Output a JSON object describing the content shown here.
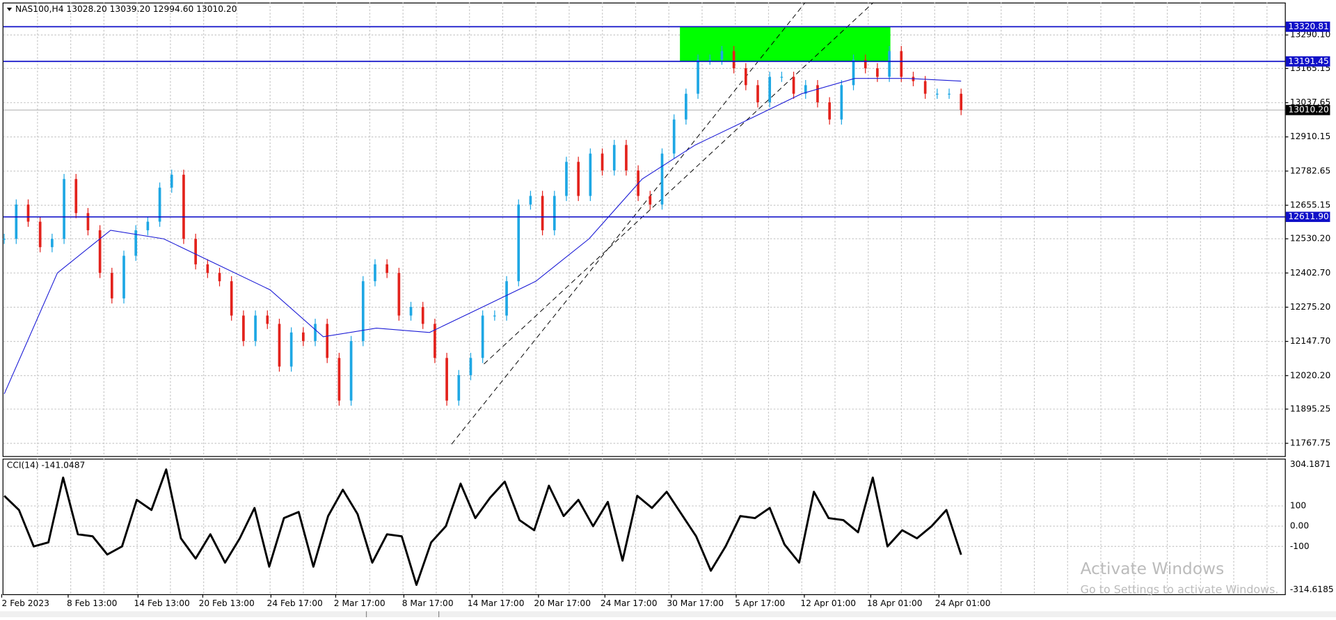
{
  "header": "NAS100,H4  13028.20 13039.20 12994.60 13010.20",
  "price": {
    "type": "candlestick",
    "ylim": [
      11720.1,
      13410.9
    ],
    "yticks": [
      {
        "value": 13290.1,
        "label": "13290.10"
      },
      13165.15,
      13037.65,
      12910.15,
      12782.65,
      12655.15,
      {
        "value": 12530.2,
        "label": "12530.20"
      },
      {
        "value": 12402.7,
        "label": "12402.70"
      },
      {
        "value": 12275.2,
        "label": "12275.20"
      },
      {
        "value": 12147.7,
        "label": "12147.70"
      },
      {
        "value": 12020.2,
        "label": "12020.20"
      },
      11895.25,
      11767.75
    ],
    "levels": [
      13320.81,
      13191.45,
      {
        "value": 12611.9,
        "label": "12611.90"
      }
    ],
    "current": {
      "value": 13010.2,
      "label": "13010.20"
    },
    "closes": [
      12530,
      12658,
      12594,
      12499,
      12530,
      12753,
      12626,
      12562,
      12403,
      12308,
      12467,
      12562,
      12594,
      12721,
      12769,
      12530,
      12435,
      12403,
      12372,
      12244,
      12149,
      12244,
      12213,
      12054,
      12181,
      12149,
      12213,
      12086,
      11927,
      12149,
      12372,
      12435,
      12403,
      12244,
      12276,
      12213,
      12086,
      11927,
      12022,
      12086,
      12244,
      12244,
      12372,
      12658,
      12690,
      12562,
      12690,
      12817,
      12690,
      12848,
      12785,
      12880,
      12785,
      12690,
      12658,
      12848,
      12975,
      13071,
      13198,
      13198,
      13230,
      13166,
      13103,
      13039,
      13134,
      13134,
      13071,
      13103,
      13039,
      12975,
      13103,
      13198,
      13166,
      13134,
      13230,
      13134,
      13118,
      13071,
      13071,
      13071,
      13010.2
    ],
    "ma": [
      11952,
      12403,
      12562,
      12530,
      12435,
      12340,
      12165,
      12197,
      12181,
      12276,
      12372,
      12530,
      12753,
      12880,
      12975,
      13071,
      13128,
      13128,
      13118
    ],
    "xlabels": [
      "2 Feb 2023",
      "8 Feb 13:00",
      "14 Feb 13:00",
      "20 Feb 13:00",
      "24 Feb 17:00",
      "2 Mar 17:00",
      "8 Mar 17:00",
      "14 Mar 17:00",
      "20 Mar 17:00",
      "24 Mar 17:00",
      "30 Mar 17:00",
      "5 Apr 17:00",
      "12 Apr 01:00",
      "18 Apr 01:00",
      "24 Apr 01:00"
    ]
  },
  "cci": {
    "label": "CCI(14) -141.0487",
    "ylim": [
      -336,
      333.5
    ],
    "yticks": [
      304.1871,
      100,
      {
        "value": 0,
        "label": "0.00"
      },
      -100,
      -314.6185
    ],
    "values": [
      150,
      80,
      -100,
      -80,
      240,
      -40,
      -50,
      -140,
      -100,
      130,
      80,
      280,
      -60,
      -160,
      -40,
      -180,
      -60,
      90,
      -200,
      40,
      70,
      -200,
      50,
      180,
      60,
      -180,
      -40,
      -50,
      -290,
      -80,
      0,
      210,
      40,
      140,
      220,
      30,
      -20,
      200,
      50,
      130,
      0,
      120,
      -170,
      150,
      90,
      170,
      60,
      -50,
      -220,
      -100,
      50,
      40,
      90,
      -90,
      -180,
      170,
      40,
      30,
      -30,
      240,
      -100,
      -20,
      -60,
      0,
      80,
      -141.0487
    ]
  },
  "watermark": [
    "Activate Windows",
    "Go to Settings to activate Windows."
  ]
}
